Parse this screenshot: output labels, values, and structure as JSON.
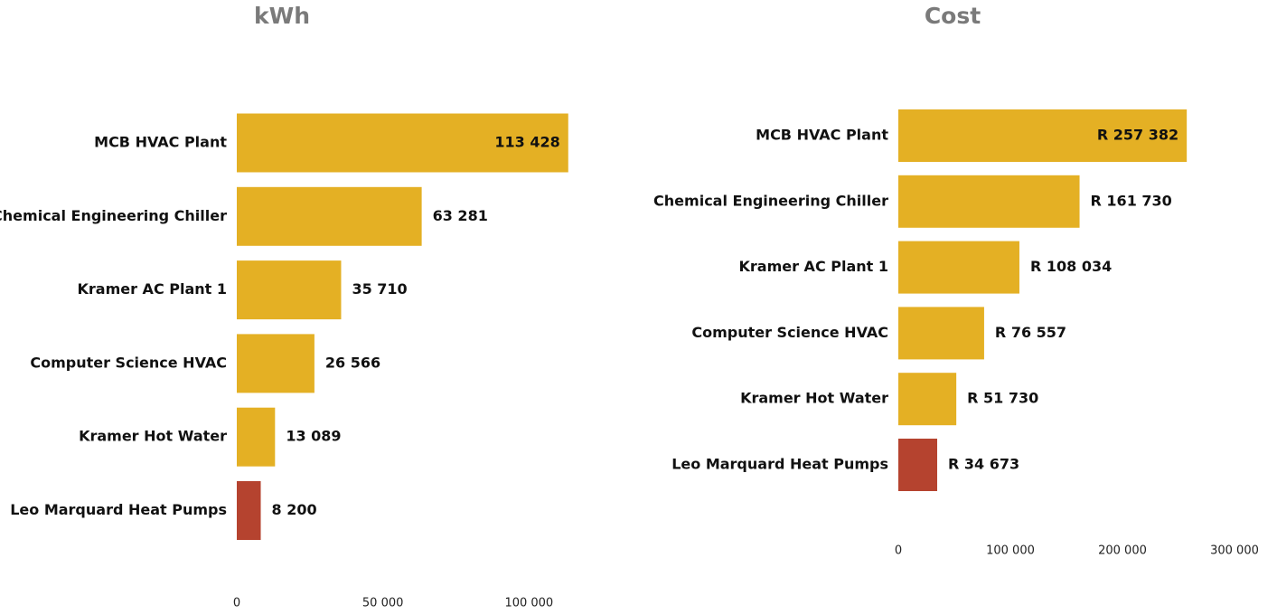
{
  "chart_data": [
    {
      "type": "bar",
      "orientation": "horizontal",
      "title": "kWh",
      "categories": [
        "MCB HVAC Plant",
        "Chemical Engineering Chiller",
        "Kramer AC Plant 1",
        "Computer Science HVAC",
        "Kramer Hot Water",
        "Leo Marquard Heat Pumps"
      ],
      "values": [
        113428,
        63281,
        35710,
        26566,
        13089,
        8200
      ],
      "value_labels": [
        "113 428",
        "63 281",
        "35 710",
        "26 566",
        "13 089",
        "8 200"
      ],
      "colors": [
        "#e4b024",
        "#e4b024",
        "#e4b024",
        "#e4b024",
        "#e4b024",
        "#b5432f"
      ],
      "xlim": [
        0,
        120000
      ],
      "xticks": [
        0,
        {
          "value": 50000,
          "label": "50 000"
        },
        {
          "value": 100000,
          "label": "100 000"
        }
      ],
      "grid": false
    },
    {
      "type": "bar",
      "orientation": "horizontal",
      "title": "Cost",
      "categories": [
        "MCB HVAC Plant",
        "Chemical Engineering Chiller",
        "Kramer AC Plant 1",
        "Computer Science HVAC",
        "Kramer Hot Water",
        "Leo Marquard Heat Pumps"
      ],
      "values": [
        257382,
        161730,
        108034,
        76557,
        51730,
        34673
      ],
      "value_labels": [
        "R 257 382",
        "R 161 730",
        "R 108 034",
        "R 76 557",
        "R 51 730",
        "R 34 673"
      ],
      "colors": [
        "#e4b024",
        "#e4b024",
        "#e4b024",
        "#e4b024",
        "#e4b024",
        "#b5432f"
      ],
      "xlim": [
        0,
        300000
      ],
      "xticks": [
        0,
        {
          "value": 100000,
          "label": "100 000"
        },
        {
          "value": 200000,
          "label": "200 000"
        },
        {
          "value": 300000,
          "label": "300 000"
        }
      ],
      "grid": false
    }
  ]
}
